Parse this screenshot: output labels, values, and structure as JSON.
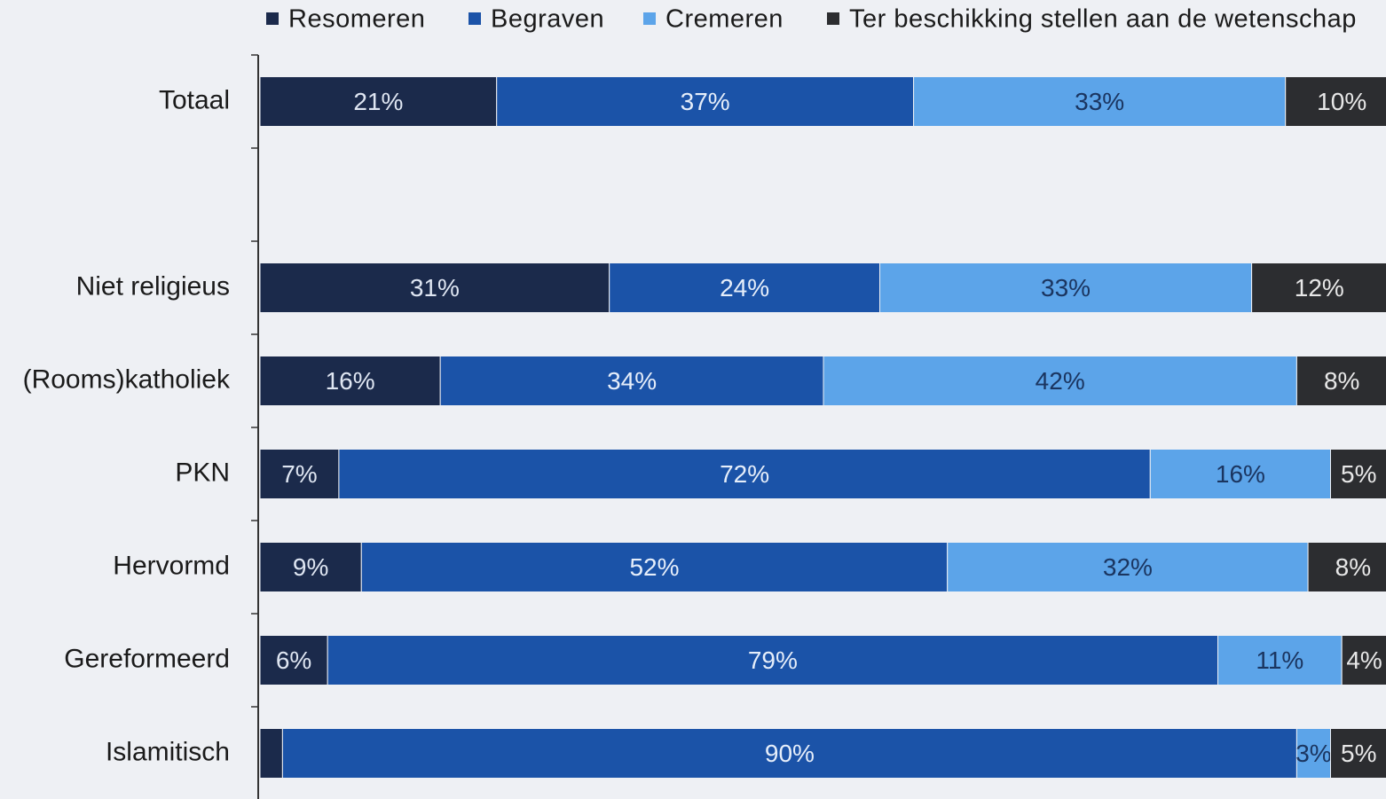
{
  "chart_data": {
    "type": "bar",
    "orientation": "horizontal",
    "stacked": true,
    "legend": "top",
    "categories": [
      "Totaal",
      null,
      "Niet religieus",
      "(Rooms)katholiek",
      "PKN",
      "Hervormd",
      "Gereformeerd",
      "Islamitisch"
    ],
    "series": [
      {
        "name": "Resomeren",
        "color": "#1b2a4b",
        "label_color": "#dfe6f2",
        "values": [
          21,
          null,
          31,
          16,
          7,
          9,
          6,
          2
        ],
        "value_labels": [
          "21%",
          null,
          "31%",
          "16%",
          "7%",
          "9%",
          "6%",
          null
        ]
      },
      {
        "name": "Begraven",
        "color": "#1b53a8",
        "label_color": "#e6eefa",
        "values": [
          37,
          null,
          24,
          34,
          72,
          52,
          79,
          90
        ],
        "value_labels": [
          "37%",
          null,
          "24%",
          "34%",
          "72%",
          "52%",
          "79%",
          "90%"
        ]
      },
      {
        "name": "Cremeren",
        "color": "#5ca4e9",
        "label_color": "#1b3560",
        "values": [
          33,
          null,
          33,
          42,
          16,
          32,
          11,
          3
        ],
        "value_labels": [
          "33%",
          null,
          "33%",
          "42%",
          "16%",
          "32%",
          "11%",
          "3%"
        ]
      },
      {
        "name": "Ter beschikking stellen aan de wetenschap",
        "color": "#2c2d30",
        "label_color": "#e8e8e8",
        "values": [
          10,
          null,
          12,
          8,
          5,
          8,
          4,
          5
        ],
        "value_labels": [
          "10%",
          null,
          "12%",
          "8%",
          "5%",
          "8%",
          "4%",
          "5%"
        ]
      }
    ]
  }
}
